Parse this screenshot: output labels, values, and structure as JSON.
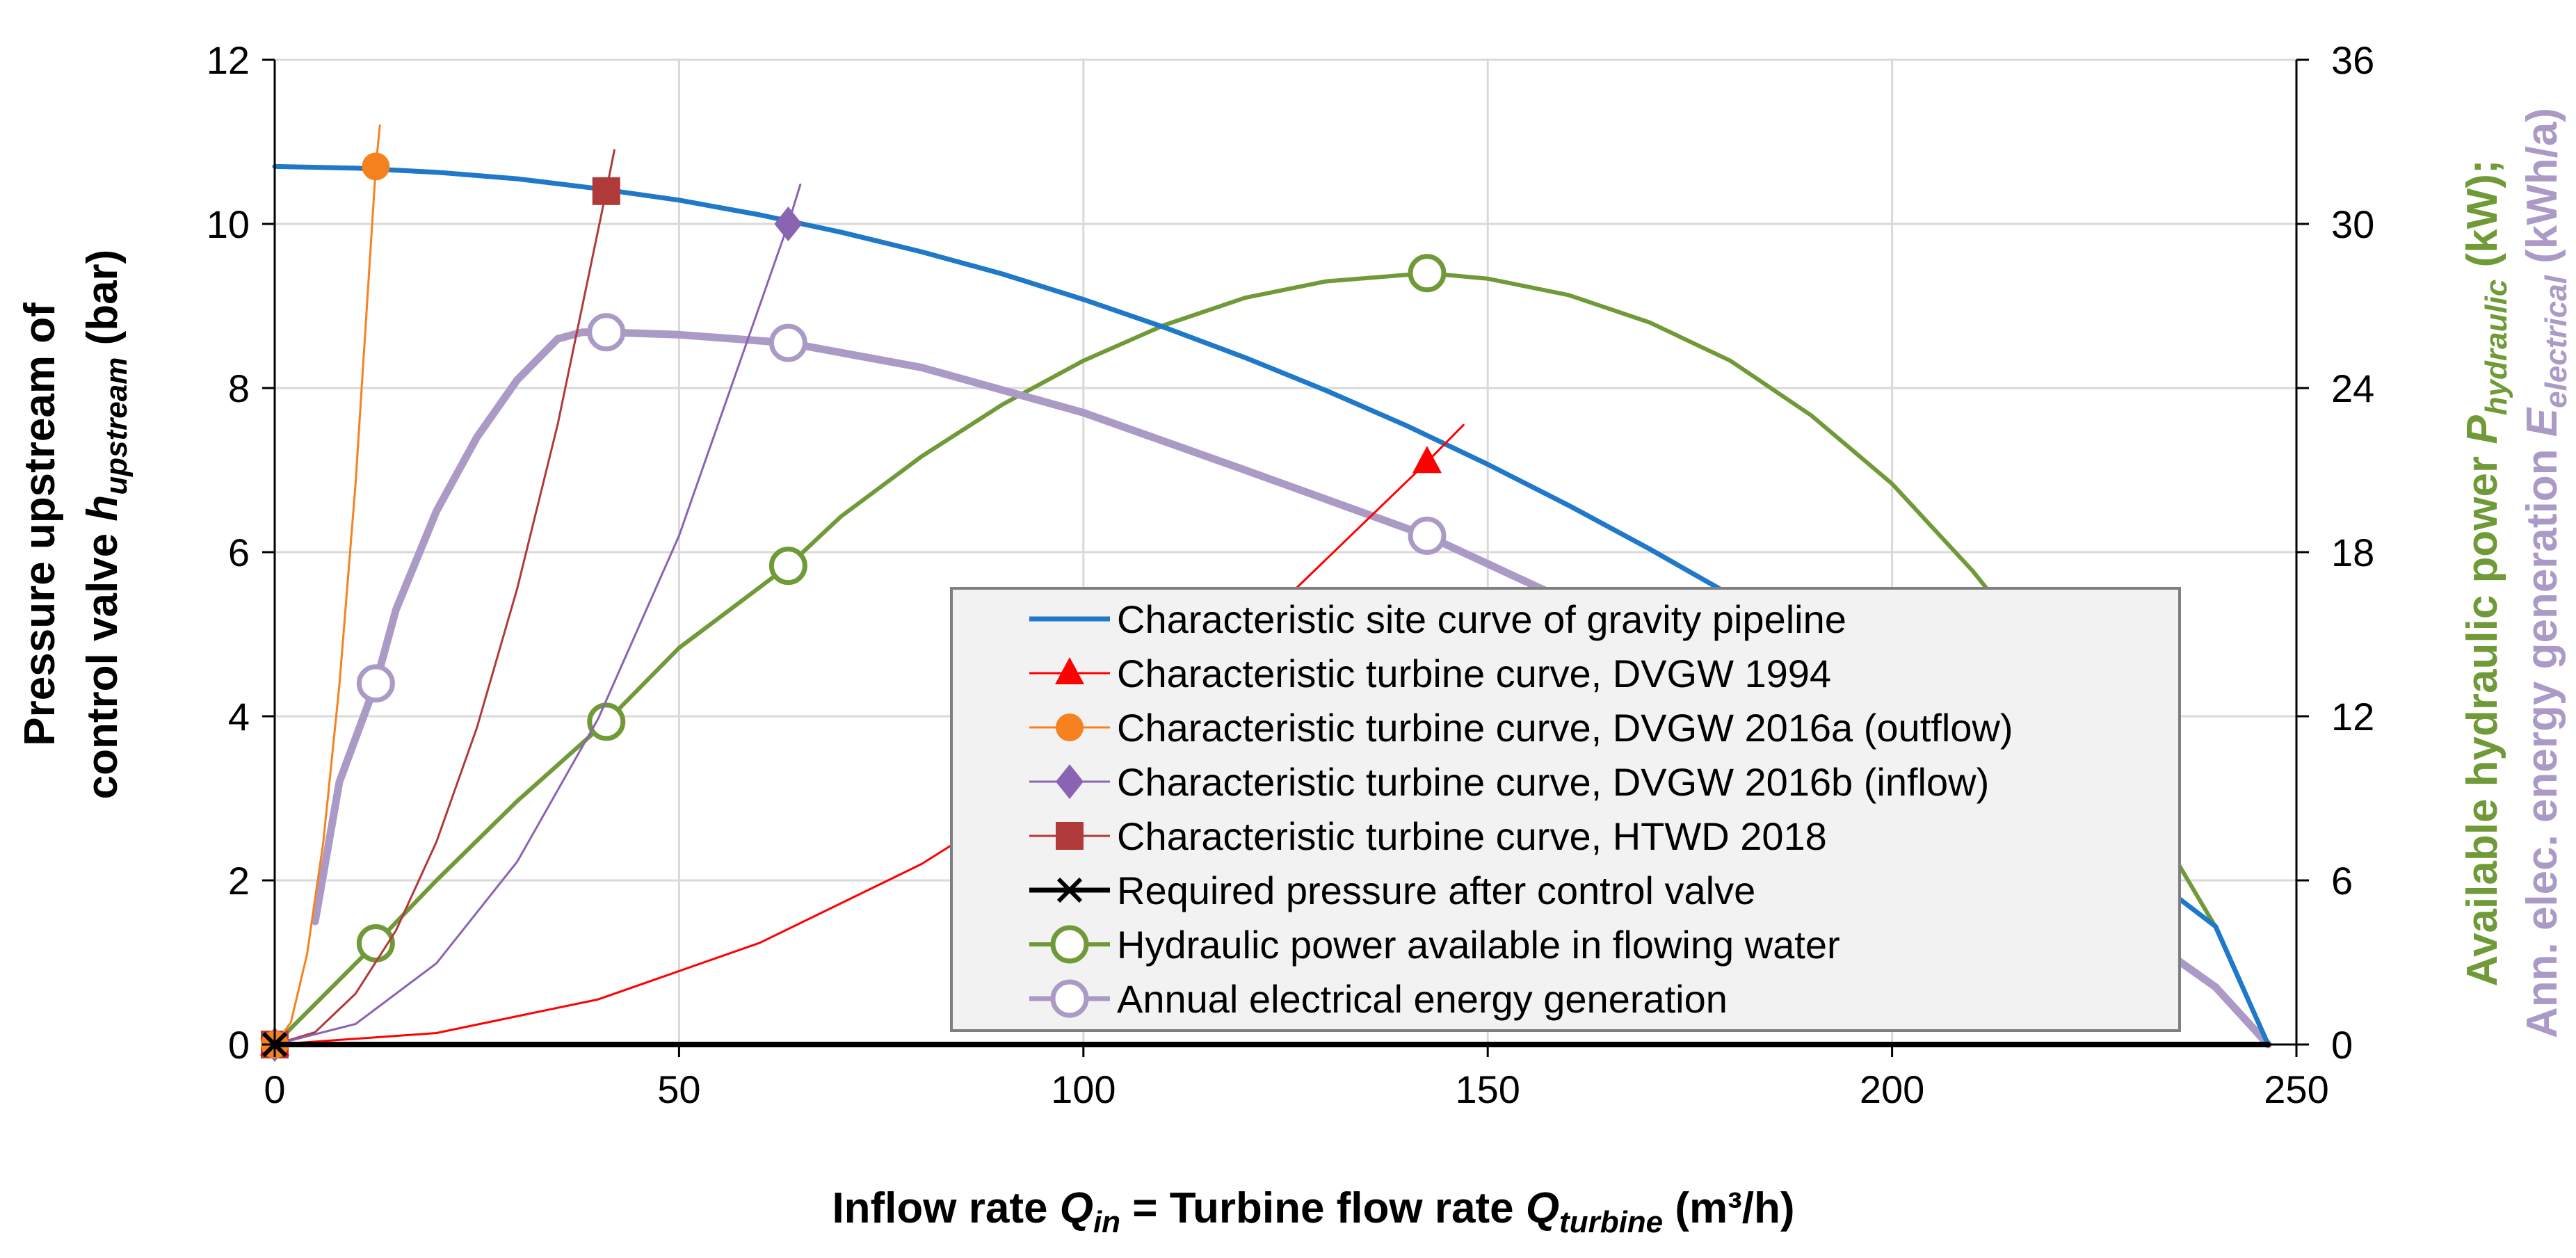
{
  "chart_data": {
    "type": "line",
    "x_axis": {
      "label_parts": [
        "Inflow rate ",
        "Q",
        "in",
        " = Turbine flow rate ",
        "Q",
        "turbine",
        " (m³/h)"
      ],
      "range": [
        0,
        250
      ],
      "ticks": [
        0,
        50,
        100,
        150,
        200,
        250
      ],
      "tick_labels": [
        "0",
        "50",
        "100",
        "150",
        "200",
        "250"
      ]
    },
    "y_left_axis": {
      "label_line1": "Pressure upstream of",
      "label_line2_parts": [
        "control valve ",
        "h",
        "upstream",
        " (bar)"
      ],
      "range": [
        0,
        12
      ],
      "ticks": [
        0,
        2,
        4,
        6,
        8,
        10,
        12
      ],
      "tick_labels": [
        "0",
        "2",
        "4",
        "6",
        "8",
        "10",
        "12"
      ]
    },
    "y_right_axis": {
      "label_line1_parts": [
        "Available hydraulic power ",
        "P",
        "hydraulic",
        " (kW);"
      ],
      "label_line2_parts": [
        "Ann. elec. energy generation ",
        "E",
        "electrical",
        " (kWh/a)"
      ],
      "line1_color": "#6f9a37",
      "line2_color": "#ab9ac5",
      "range": [
        0,
        36
      ],
      "ticks": [
        0,
        6,
        12,
        18,
        24,
        30,
        36
      ],
      "tick_labels": [
        "0",
        "6",
        "12",
        "18",
        "24",
        "30",
        "36"
      ]
    },
    "grid": true,
    "legend": {
      "position": "center-right",
      "entries": [
        "Characteristic site curve of gravity pipeline",
        "Characteristic turbine curve, DVGW 1994",
        "Characteristic turbine curve, DVGW 2016a (outflow)",
        "Characteristic turbine curve, DVGW 2016b (inflow)",
        "Characteristic turbine curve, HTWD 2018",
        "Required pressure after control valve",
        "Hydraulic power available in flowing water",
        "Annual electrical energy generation"
      ]
    },
    "series": [
      {
        "name": "Characteristic site curve of gravity pipeline",
        "axis": "left",
        "color": "#1f78c8",
        "width": 7,
        "marker": "none",
        "x": [
          0,
          10,
          20,
          30,
          40,
          50,
          60,
          70,
          80,
          90,
          100,
          110,
          120,
          130,
          140,
          150,
          160,
          170,
          180,
          190,
          200,
          210,
          220,
          230,
          240,
          246.5
        ],
        "y": [
          10.7,
          10.68,
          10.63,
          10.55,
          10.43,
          10.29,
          10.11,
          9.9,
          9.66,
          9.39,
          9.08,
          8.74,
          8.37,
          7.97,
          7.54,
          7.07,
          6.57,
          6.04,
          5.48,
          4.89,
          4.26,
          3.6,
          2.91,
          2.19,
          1.44,
          0
        ]
      },
      {
        "name": "Characteristic turbine curve, DVGW 1994",
        "axis": "left",
        "color": "#ff0000",
        "width": 3,
        "marker": "triangle",
        "x": [
          0,
          20,
          40,
          60,
          80,
          100,
          120,
          142.5,
          147
        ],
        "y": [
          0,
          0.14,
          0.55,
          1.24,
          2.2,
          3.44,
          4.96,
          7.1,
          7.55
        ],
        "marker_points": [
          [
            0,
            0
          ],
          [
            142.5,
            7.1
          ]
        ]
      },
      {
        "name": "Characteristic turbine curve, DVGW 2016a (outflow)",
        "axis": "left",
        "color": "#f5821f",
        "width": 3,
        "marker": "circle",
        "x": [
          0,
          2,
          4,
          6,
          8,
          10,
          12.5,
          13
        ],
        "y": [
          0,
          0.27,
          1.1,
          2.46,
          4.38,
          6.84,
          10.7,
          11.2
        ],
        "marker_points": [
          [
            0,
            0
          ],
          [
            12.5,
            10.7
          ]
        ]
      },
      {
        "name": "Characteristic turbine curve, DVGW 2016b (inflow)",
        "axis": "left",
        "color": "#8a63b3",
        "width": 3,
        "marker": "diamond",
        "x": [
          0,
          10,
          20,
          30,
          40,
          50,
          63.5,
          65
        ],
        "y": [
          0,
          0.25,
          0.99,
          2.23,
          3.97,
          6.2,
          10.0,
          10.48
        ],
        "marker_points": [
          [
            0,
            0
          ],
          [
            63.5,
            10.0
          ]
        ]
      },
      {
        "name": "Characteristic turbine curve, HTWD 2018",
        "axis": "left",
        "color": "#b03a3a",
        "width": 3,
        "marker": "square",
        "x": [
          0,
          5,
          10,
          15,
          20,
          25,
          30,
          35,
          41,
          42
        ],
        "y": [
          0,
          0.15,
          0.62,
          1.39,
          2.47,
          3.86,
          5.56,
          7.56,
          10.4,
          10.9
        ],
        "marker_points": [
          [
            0,
            0
          ],
          [
            41,
            10.4
          ]
        ]
      },
      {
        "name": "Required pressure after control valve",
        "axis": "left",
        "color": "#000000",
        "width": 8,
        "marker": "x",
        "x": [
          0,
          246.5
        ],
        "y": [
          0,
          0
        ],
        "marker_points": [
          [
            0,
            0
          ]
        ]
      },
      {
        "name": "Hydraulic power available in flowing water",
        "axis": "right",
        "color": "#6f9a37",
        "width": 6,
        "marker": "circle-open",
        "x": [
          0,
          12.5,
          20,
          30,
          41,
          50,
          63.5,
          70,
          80,
          90,
          100,
          110,
          120,
          130,
          142.5,
          150,
          160,
          170,
          180,
          190,
          200,
          210,
          220,
          230,
          240,
          246.5
        ],
        "y": [
          0,
          3.7,
          6.0,
          8.9,
          11.8,
          14.5,
          17.5,
          19.3,
          21.5,
          23.4,
          25.0,
          26.3,
          27.3,
          27.9,
          28.2,
          28.0,
          27.4,
          26.4,
          25.0,
          23.0,
          20.5,
          17.3,
          13.6,
          9.3,
          4.3,
          0
        ],
        "marker_points": [
          [
            12.5,
            3.7
          ],
          [
            41,
            11.8
          ],
          [
            63.5,
            17.5
          ],
          [
            142.5,
            28.2
          ]
        ]
      },
      {
        "name": "Annual electrical energy generation",
        "axis": "left",
        "color": "#ab9ac5",
        "width": 11,
        "marker": "circle-open",
        "x": [
          5,
          8,
          12.5,
          15,
          20,
          25,
          30,
          35,
          38,
          41,
          50,
          63.5,
          80,
          100,
          120,
          142.5,
          160,
          180,
          200,
          220,
          240,
          246.5
        ],
        "y": [
          1.5,
          3.2,
          4.4,
          5.3,
          6.5,
          7.4,
          8.1,
          8.6,
          8.68,
          8.68,
          8.65,
          8.55,
          8.25,
          7.7,
          7.0,
          6.2,
          5.4,
          4.4,
          3.3,
          2.1,
          0.7,
          0
        ],
        "marker_points": [
          [
            12.5,
            4.4
          ],
          [
            41,
            8.68
          ],
          [
            63.5,
            8.55
          ],
          [
            142.5,
            6.2
          ]
        ]
      }
    ]
  }
}
